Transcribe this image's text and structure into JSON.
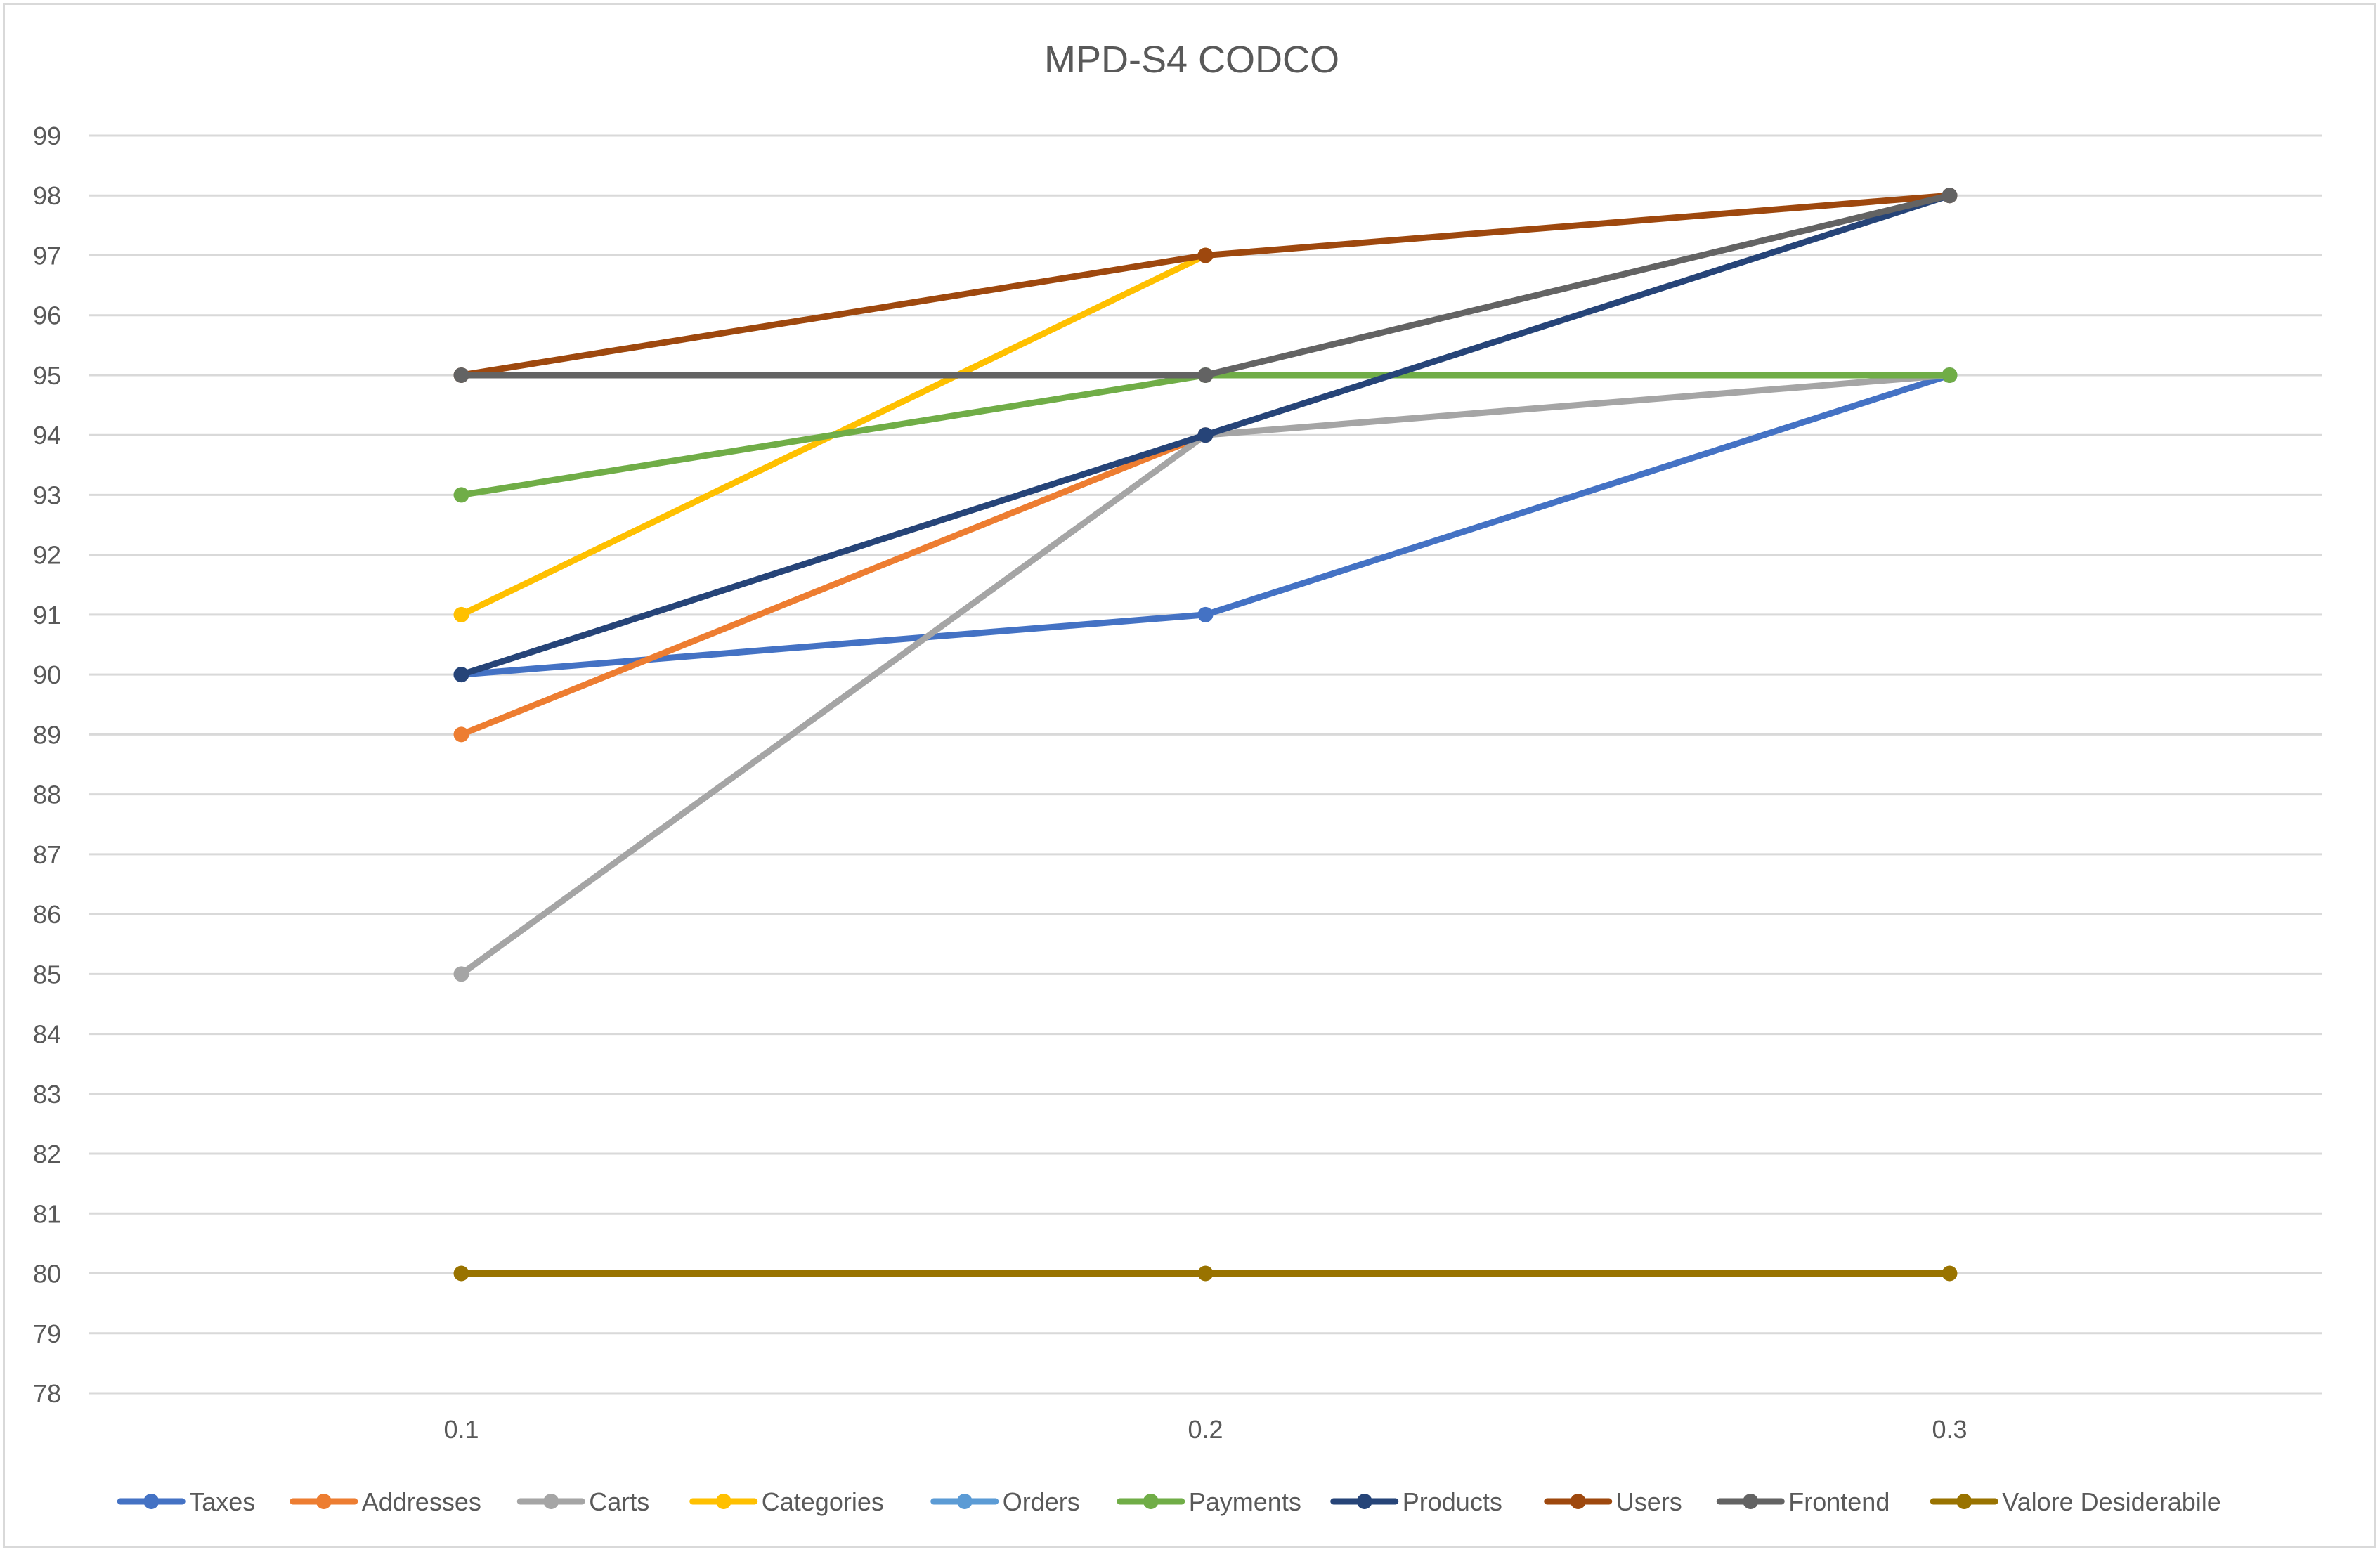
{
  "chart_data": {
    "type": "line",
    "title": "MPD-S4 CODCO",
    "xlabel": "",
    "ylabel": "",
    "categories": [
      "0.1",
      "0.2",
      "0.3"
    ],
    "ylim": [
      78,
      99
    ],
    "yticks": [
      78,
      79,
      80,
      81,
      82,
      83,
      84,
      85,
      86,
      87,
      88,
      89,
      90,
      91,
      92,
      93,
      94,
      95,
      96,
      97,
      98,
      99
    ],
    "grid": true,
    "legend_position": "bottom",
    "series": [
      {
        "name": "Taxes",
        "color": "#4472C4",
        "values": [
          90,
          91,
          95
        ]
      },
      {
        "name": "Addresses",
        "color": "#ED7D31",
        "values": [
          89,
          94,
          null
        ]
      },
      {
        "name": "Carts",
        "color": "#A5A5A5",
        "values": [
          85,
          94,
          95
        ]
      },
      {
        "name": "Categories",
        "color": "#FFC000",
        "values": [
          91,
          97,
          null
        ]
      },
      {
        "name": "Orders",
        "color": "#5B9BD5",
        "values": [
          null,
          null,
          null
        ]
      },
      {
        "name": "Payments",
        "color": "#70AD47",
        "values": [
          93,
          95,
          95
        ]
      },
      {
        "name": "Products",
        "color": "#264478",
        "values": [
          90,
          94,
          98
        ]
      },
      {
        "name": "Users",
        "color": "#9E480E",
        "values": [
          95,
          97,
          98
        ]
      },
      {
        "name": "Frontend",
        "color": "#636363",
        "values": [
          95,
          95,
          98
        ]
      },
      {
        "name": "Valore Desiderabile",
        "color": "#997300",
        "values": [
          80,
          80,
          80
        ]
      }
    ]
  }
}
